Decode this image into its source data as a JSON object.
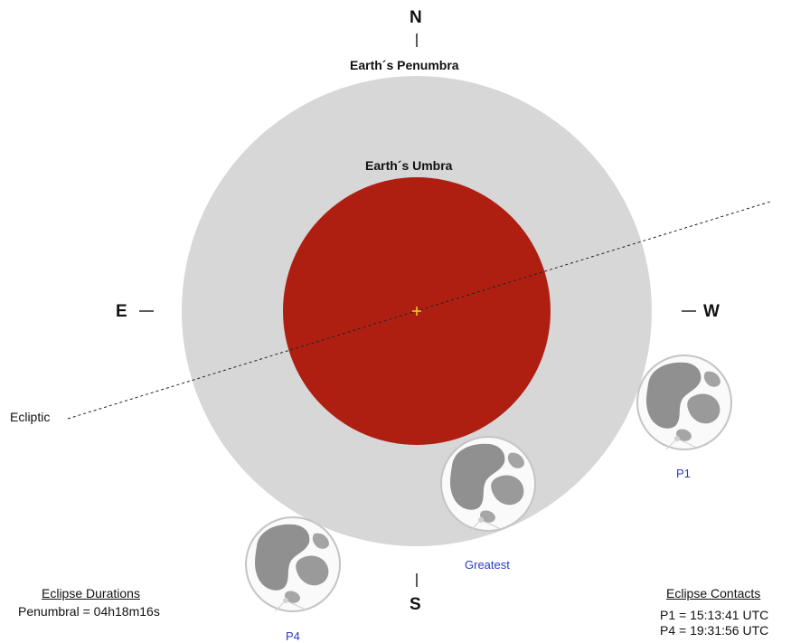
{
  "compass": {
    "north": "N",
    "south": "S",
    "east": "E",
    "west": "W"
  },
  "penumbra_label": "Earth´s Penumbra",
  "umbra_label": "Earth´s Umbra",
  "ecliptic_label": "Ecliptic",
  "moon_positions": {
    "p1": "P1",
    "greatest": "Greatest",
    "p4": "P4"
  },
  "durations": {
    "heading": "Eclipse Durations",
    "penumbral": "Penumbral = 04h18m16s"
  },
  "contacts": {
    "heading": "Eclipse Contacts",
    "p1": "P1 = 15:13:41 UTC",
    "p4": "P4 = 19:31:56 UTC"
  },
  "colors": {
    "penumbra": "#d7d7d7",
    "umbra": "#ae1f12",
    "moon_label": "#2a3bc0",
    "center_marker": "#f2d21a"
  }
}
